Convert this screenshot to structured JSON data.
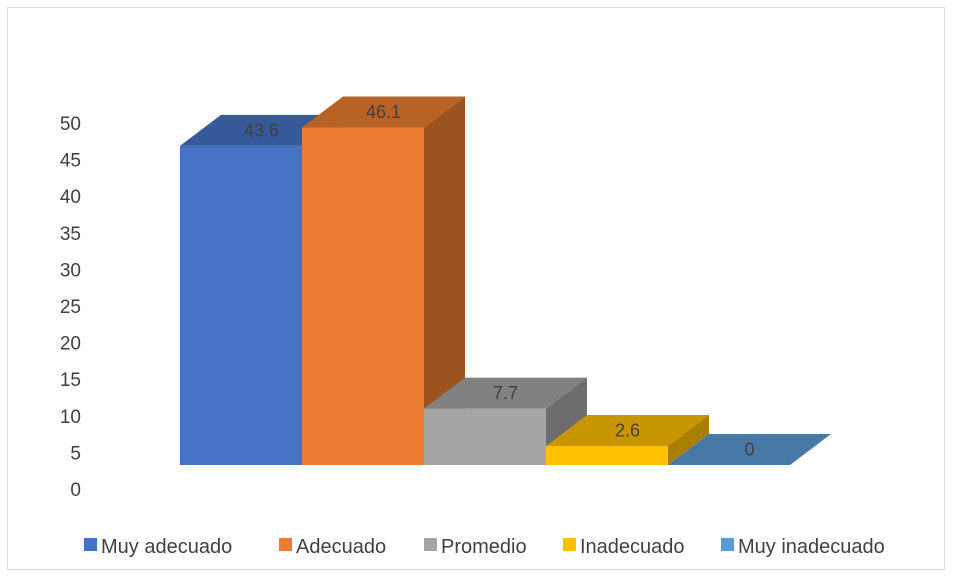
{
  "chart_data": {
    "type": "bar",
    "title": "",
    "xlabel": "",
    "ylabel": "",
    "ylim": [
      0,
      50
    ],
    "y_ticks": [
      "0",
      "5",
      "10",
      "15",
      "20",
      "25",
      "30",
      "35",
      "40",
      "45",
      "50"
    ],
    "categories": [
      "Muy adecuado",
      "Adecuado",
      "Promedio",
      "Inadecuado",
      "Muy inadecuado"
    ],
    "values": [
      43.6,
      46.1,
      7.7,
      2.6,
      0
    ],
    "data_labels": [
      "43.6",
      "46.1",
      "7.7",
      "2.6",
      "0"
    ],
    "colors": [
      "#4472C4",
      "#ED7D31",
      "#A5A5A5",
      "#FFC000",
      "#5B9BD5"
    ],
    "legend_position": "bottom",
    "grid": false,
    "style": "3d-column"
  }
}
